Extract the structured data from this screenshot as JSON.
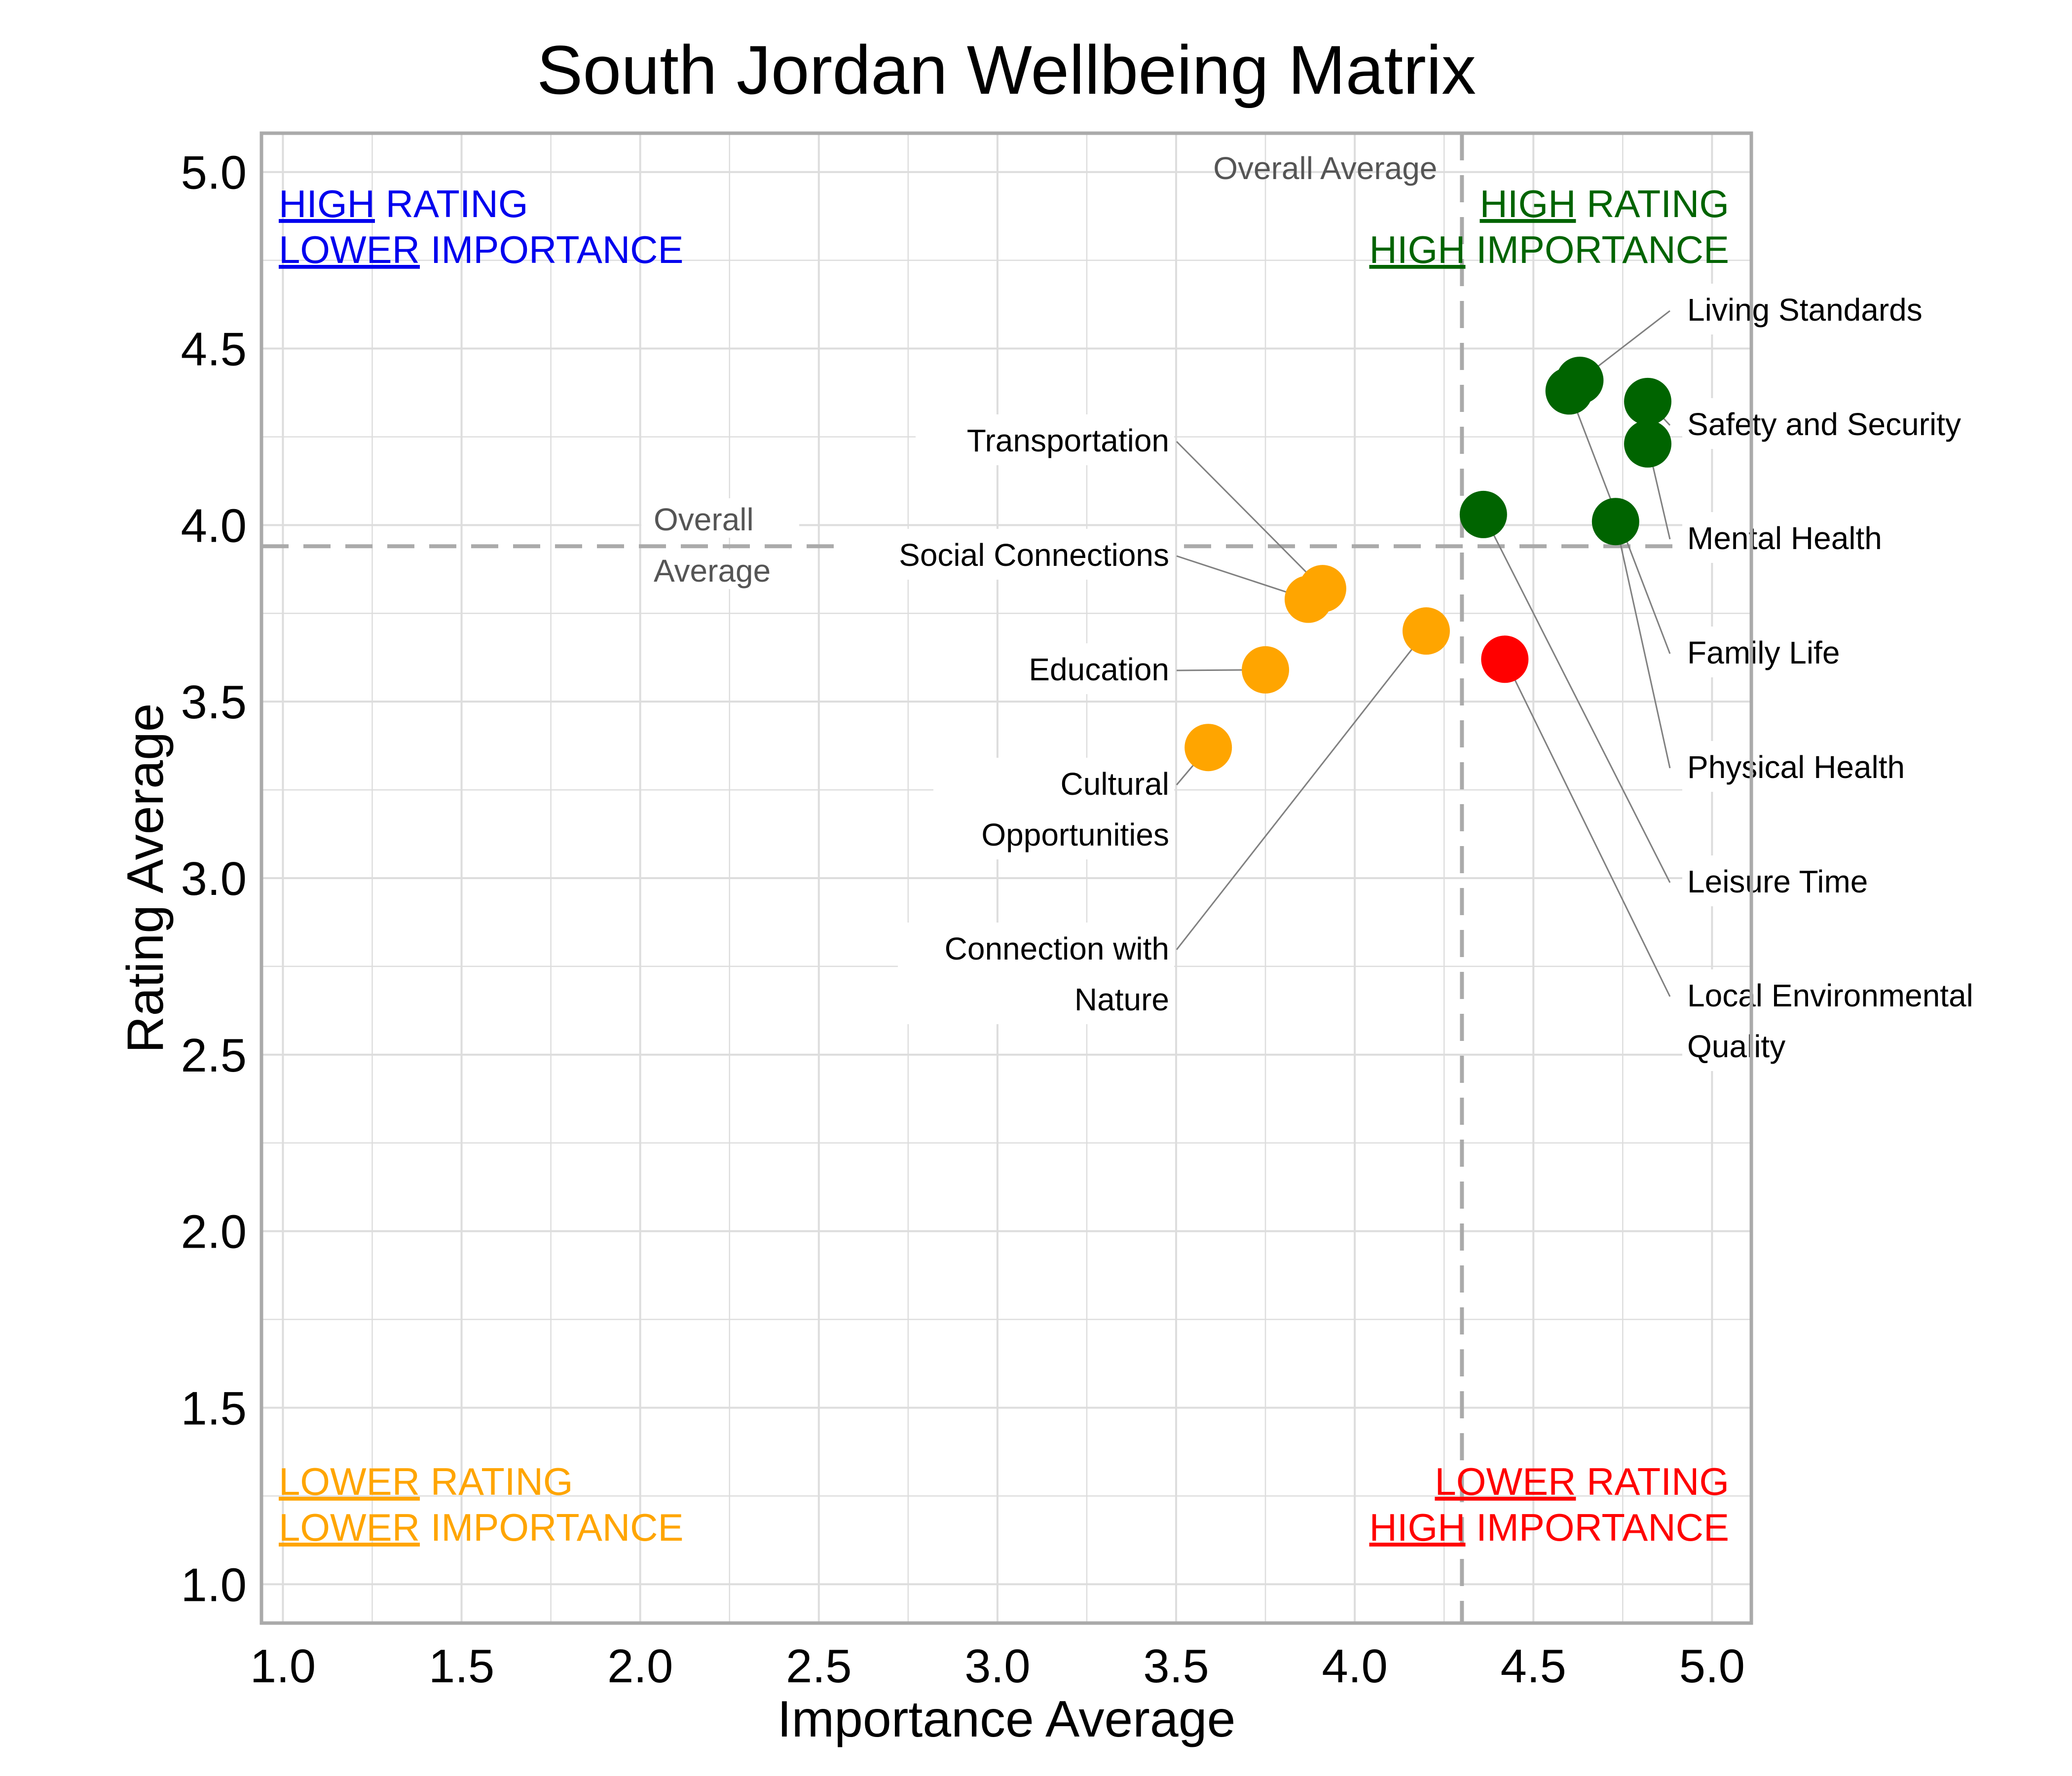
{
  "chart_data": {
    "type": "scatter",
    "title": "South Jordan Wellbeing Matrix",
    "xlabel": "Importance Average",
    "ylabel": "Rating Average",
    "xlim": [
      0.94,
      5.11
    ],
    "ylim": [
      0.89,
      5.11
    ],
    "xticks": [
      "1.0",
      "1.5",
      "2.0",
      "2.5",
      "3.0",
      "3.5",
      "4.0",
      "4.5",
      "5.0"
    ],
    "yticks": [
      "1.0",
      "1.5",
      "2.0",
      "2.5",
      "3.0",
      "3.5",
      "4.0",
      "4.5",
      "5.0"
    ],
    "grid": true,
    "overall_average": {
      "importance": 4.3,
      "rating": 3.94
    },
    "overall_average_labels": {
      "vertical": "Overall Average",
      "horizontal": [
        "Overall",
        "Average"
      ]
    },
    "quadrant_labels": {
      "top_left": {
        "line1_em": "HIGH",
        "line1_rest": " RATING",
        "line2_em": "LOWER",
        "line2_rest": " IMPORTANCE",
        "color": "#0000ee"
      },
      "top_right": {
        "line1_em": "HIGH",
        "line1_rest": " RATING",
        "line2_em": "HIGH",
        "line2_rest": " IMPORTANCE",
        "color": "#006400"
      },
      "bottom_left": {
        "line1_em": "LOWER",
        "line1_rest": " RATING",
        "line2_em": "LOWER",
        "line2_rest": " IMPORTANCE",
        "color": "#ffa500"
      },
      "bottom_right": {
        "line1_em": "LOWER",
        "line1_rest": " RATING",
        "line2_em": "HIGH",
        "line2_rest": " IMPORTANCE",
        "color": "#ff0000"
      }
    },
    "colors": {
      "high_high": "#006400",
      "low_low": "#ffa500",
      "low_high": "#ff0000",
      "guide": "#aaaaaa",
      "grid": "#dddddd",
      "frame": "#aaaaaa"
    },
    "points": [
      {
        "label": [
          "Living Standards"
        ],
        "importance": 4.63,
        "rating": 4.41,
        "group": "high_high"
      },
      {
        "label": [
          "Safety and Security"
        ],
        "importance": 4.82,
        "rating": 4.35,
        "group": "high_high"
      },
      {
        "label": [
          "Mental Health"
        ],
        "importance": 4.82,
        "rating": 4.23,
        "group": "high_high"
      },
      {
        "label": [
          "Family Life"
        ],
        "importance": 4.6,
        "rating": 4.38,
        "group": "high_high"
      },
      {
        "label": [
          "Physical Health"
        ],
        "importance": 4.73,
        "rating": 4.01,
        "group": "high_high"
      },
      {
        "label": [
          "Leisure Time"
        ],
        "importance": 4.36,
        "rating": 4.03,
        "group": "high_high"
      },
      {
        "label": [
          "Local Environmental",
          "Quality"
        ],
        "importance": 4.42,
        "rating": 3.62,
        "group": "low_high"
      },
      {
        "label": [
          "Transportation"
        ],
        "importance": 3.91,
        "rating": 3.82,
        "group": "low_low"
      },
      {
        "label": [
          "Social Connections"
        ],
        "importance": 3.87,
        "rating": 3.79,
        "group": "low_low"
      },
      {
        "label": [
          "Education"
        ],
        "importance": 3.75,
        "rating": 3.59,
        "group": "low_low"
      },
      {
        "label": [
          "Cultural",
          "Opportunities"
        ],
        "importance": 3.59,
        "rating": 3.37,
        "group": "low_low"
      },
      {
        "label": [
          "Connection with",
          "Nature"
        ],
        "importance": 4.2,
        "rating": 3.7,
        "group": "low_low"
      }
    ]
  }
}
